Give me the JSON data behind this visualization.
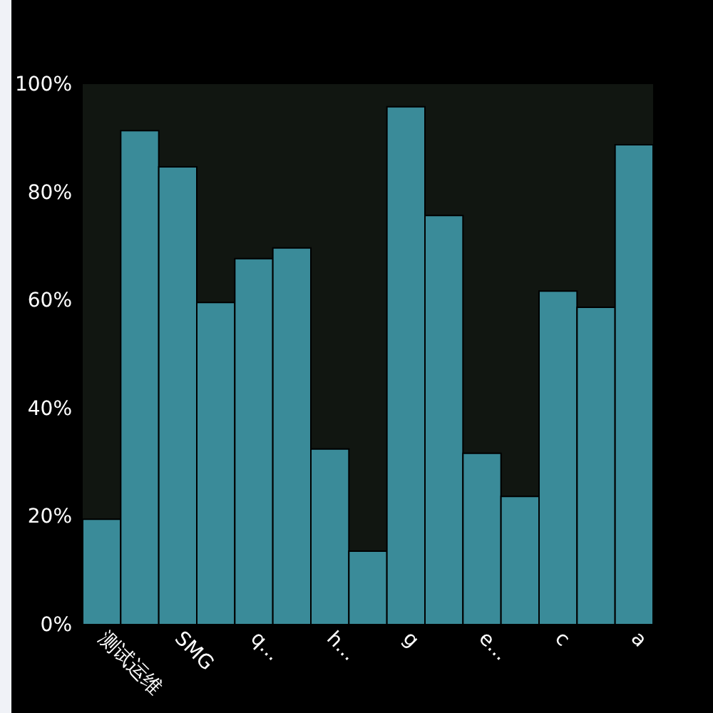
{
  "chart_data": {
    "type": "bar",
    "categories": [
      "测试运维",
      null,
      "SMG",
      null,
      "q...",
      null,
      "h...",
      null,
      "g",
      null,
      "e...",
      null,
      "c",
      null,
      "a"
    ],
    "values": [
      19.5,
      91.4,
      84.7,
      59.6,
      67.7,
      69.7,
      32.5,
      13.6,
      95.8,
      75.7,
      31.7,
      23.7,
      61.7,
      58.7,
      88.8
    ],
    "color": "#3a8b99",
    "ylim": [
      0,
      100
    ],
    "yticks": [
      {
        "value": 0,
        "label": "0%"
      },
      {
        "value": 20,
        "label": "20%"
      },
      {
        "value": 40,
        "label": "40%"
      },
      {
        "value": 60,
        "label": "60%"
      },
      {
        "value": 80,
        "label": "80%"
      },
      {
        "value": 100,
        "label": "100%"
      }
    ]
  }
}
